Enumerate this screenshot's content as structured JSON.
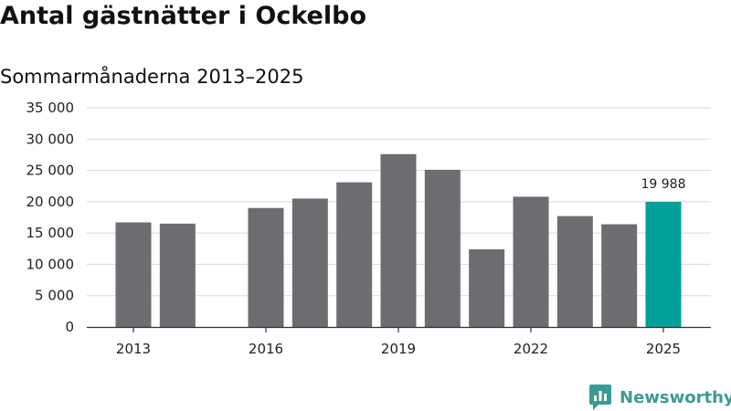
{
  "header": {
    "title": "Antal gästnätter i Ockelbo",
    "subtitle": "Sommarmånaderna 2013–2025"
  },
  "brand": {
    "name": "Newsworthy",
    "icon": "newsworthy-logo-icon",
    "color": "#3a9b94"
  },
  "colors": {
    "bar": "#6d6c71",
    "highlight": "#00a09a",
    "grid": "#d9d9d9",
    "axis": "#333333"
  },
  "chart_data": {
    "type": "bar",
    "title": "Antal gästnätter i Ockelbo",
    "subtitle": "Sommarmånaderna 2013–2025",
    "categories": [
      2013,
      2014,
      2015,
      2016,
      2017,
      2018,
      2019,
      2020,
      2021,
      2022,
      2023,
      2024,
      2025
    ],
    "values": [
      16700,
      16500,
      null,
      19000,
      20500,
      23100,
      27600,
      25100,
      12400,
      20800,
      17700,
      16400,
      19988
    ],
    "highlight": {
      "category": 2025,
      "label": "19 988"
    },
    "x_tick_labels": [
      "2013",
      "2016",
      "2019",
      "2022",
      "2025"
    ],
    "y_tick_labels": [
      "0",
      "5 000",
      "10 000",
      "15 000",
      "20 000",
      "25 000",
      "30 000",
      "35 000"
    ],
    "ylim": [
      0,
      35000
    ],
    "ytick_step": 5000,
    "grid": true,
    "legend": "none"
  }
}
